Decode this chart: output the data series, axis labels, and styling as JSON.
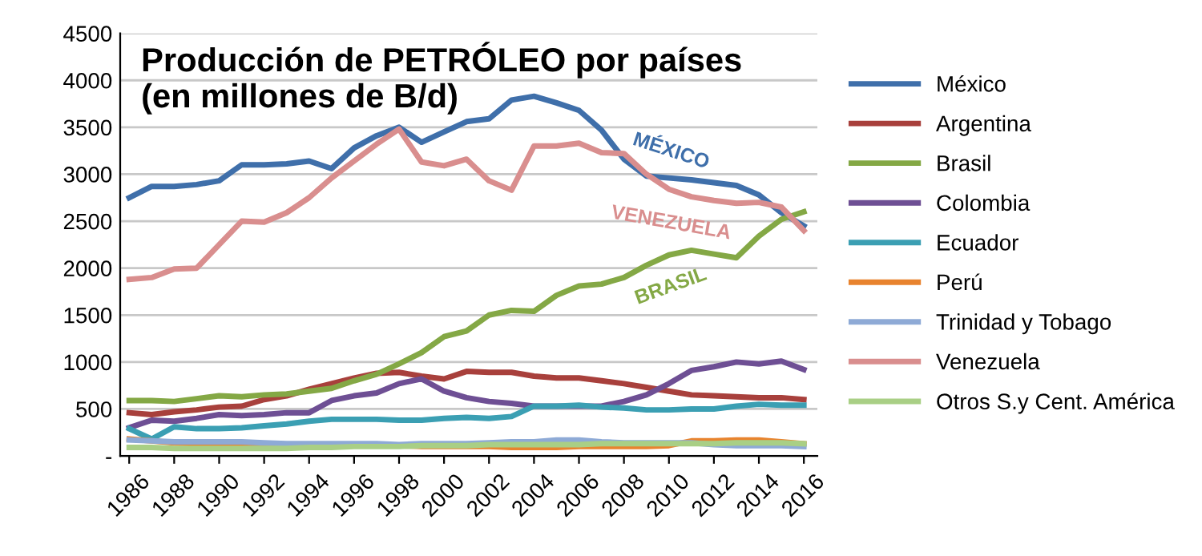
{
  "chart_data": {
    "type": "line",
    "title": "Producción de PETRÓLEO por países\n(en millones de B/d)",
    "x": [
      1986,
      1987,
      1988,
      1989,
      1990,
      1991,
      1992,
      1993,
      1994,
      1995,
      1996,
      1997,
      1998,
      1999,
      2000,
      2001,
      2002,
      2003,
      2004,
      2005,
      2006,
      2007,
      2008,
      2009,
      2010,
      2011,
      2012,
      2013,
      2014,
      2015,
      2016
    ],
    "series": [
      {
        "name": "México",
        "color": "#3f6faa",
        "values": [
          2750,
          2870,
          2870,
          2890,
          2930,
          3100,
          3100,
          3110,
          3140,
          3060,
          3280,
          3410,
          3500,
          3340,
          3450,
          3560,
          3590,
          3790,
          3830,
          3760,
          3680,
          3470,
          3160,
          2980,
          2960,
          2940,
          2910,
          2880,
          2780,
          2590,
          2450
        ]
      },
      {
        "name": "Argentina",
        "color": "#a8403c",
        "values": [
          460,
          440,
          470,
          490,
          520,
          530,
          600,
          640,
          710,
          770,
          830,
          880,
          890,
          850,
          820,
          900,
          890,
          890,
          850,
          830,
          830,
          800,
          770,
          730,
          690,
          650,
          640,
          630,
          620,
          620,
          600
        ]
      },
      {
        "name": "Brasil",
        "color": "#84a845",
        "values": [
          590,
          590,
          580,
          610,
          640,
          630,
          650,
          660,
          690,
          720,
          800,
          870,
          980,
          1100,
          1270,
          1330,
          1500,
          1550,
          1540,
          1710,
          1810,
          1830,
          1900,
          2030,
          2140,
          2190,
          2150,
          2110,
          2340,
          2520,
          2600
        ]
      },
      {
        "name": "Colombia",
        "color": "#6e4f94",
        "values": [
          300,
          380,
          370,
          400,
          440,
          430,
          440,
          460,
          460,
          590,
          640,
          670,
          770,
          820,
          690,
          620,
          580,
          560,
          530,
          530,
          530,
          530,
          580,
          650,
          770,
          910,
          950,
          1000,
          980,
          1010,
          920
        ]
      },
      {
        "name": "Ecuador",
        "color": "#3b9fb3",
        "values": [
          290,
          180,
          310,
          290,
          290,
          300,
          320,
          340,
          370,
          390,
          390,
          390,
          380,
          380,
          400,
          410,
          400,
          420,
          530,
          530,
          540,
          520,
          510,
          490,
          490,
          500,
          500,
          530,
          550,
          540,
          540
        ]
      },
      {
        "name": "Perú",
        "color": "#e8832e",
        "values": [
          180,
          160,
          140,
          130,
          130,
          120,
          120,
          120,
          120,
          120,
          120,
          120,
          110,
          100,
          100,
          100,
          100,
          90,
          90,
          90,
          100,
          100,
          100,
          100,
          110,
          160,
          160,
          170,
          170,
          150,
          130
        ]
      },
      {
        "name": "Trinidad y Tobago",
        "color": "#8eaad6",
        "values": [
          170,
          160,
          150,
          150,
          150,
          150,
          140,
          130,
          130,
          130,
          130,
          130,
          120,
          130,
          130,
          130,
          140,
          150,
          150,
          170,
          170,
          150,
          140,
          140,
          140,
          140,
          120,
          110,
          110,
          110,
          100
        ]
      },
      {
        "name": "Venezuela",
        "color": "#d98e8e",
        "values": [
          1880,
          1900,
          1990,
          2000,
          2250,
          2500,
          2490,
          2590,
          2750,
          2960,
          3140,
          3320,
          3480,
          3130,
          3090,
          3160,
          2930,
          2830,
          3300,
          3300,
          3330,
          3230,
          3220,
          3000,
          2840,
          2760,
          2720,
          2690,
          2700,
          2650,
          2400
        ]
      },
      {
        "name": "Otros S.y Cent. América",
        "color": "#a9cf85",
        "values": [
          90,
          90,
          80,
          80,
          80,
          80,
          80,
          80,
          90,
          90,
          100,
          100,
          100,
          110,
          110,
          110,
          120,
          120,
          120,
          120,
          120,
          130,
          130,
          130,
          130,
          130,
          130,
          140,
          140,
          140,
          130
        ]
      }
    ],
    "annotations": [
      "MÉXICO",
      "VENEZUELA",
      "BRASIL"
    ],
    "xlim": [
      1985.6,
      2016.6
    ],
    "xticks": [
      1986,
      1988,
      1990,
      1992,
      1994,
      1996,
      1998,
      2000,
      2002,
      2004,
      2006,
      2008,
      2010,
      2012,
      2014,
      2016
    ],
    "ylim": [
      0,
      4500
    ],
    "yticks": [
      {
        "value": 0,
        "label": "-"
      },
      500,
      1000,
      1500,
      2000,
      2500,
      3000,
      3500,
      4000,
      4500
    ],
    "grid": "y",
    "legend": "right",
    "marker": "none",
    "line_style": "solid"
  }
}
